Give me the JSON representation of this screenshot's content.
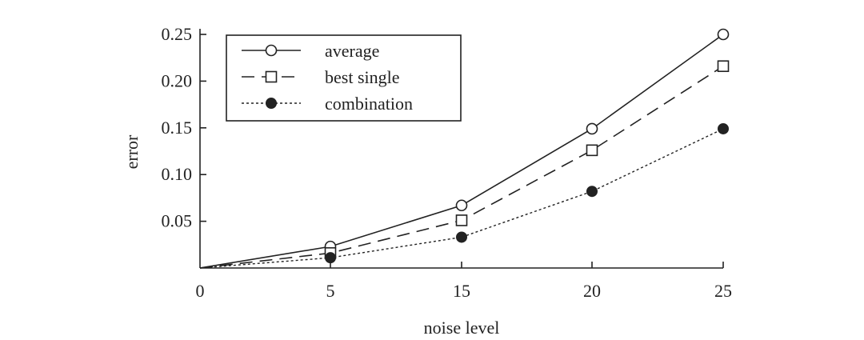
{
  "chart_data": {
    "type": "line",
    "x": [
      0,
      5,
      15,
      20,
      25
    ],
    "x_tick_labels": [
      "0",
      "5",
      "15",
      "20",
      "25"
    ],
    "y_ticks": [
      0.05,
      0.1,
      0.15,
      0.2,
      0.25
    ],
    "y_tick_labels": [
      "0.05",
      "0.10",
      "0.15",
      "0.20",
      "0.25"
    ],
    "xlabel": "noise level",
    "ylabel": "error",
    "ylim": [
      0,
      0.25
    ],
    "x_scale": "categorical-positions",
    "grid": false,
    "legend_position": "top-left",
    "series": [
      {
        "name": "average",
        "values": [
          0,
          0.023,
          0.067,
          0.149,
          0.25
        ],
        "line": "solid",
        "marker": "open-circle"
      },
      {
        "name": "best single",
        "values": [
          0,
          0.016,
          0.051,
          0.126,
          0.216
        ],
        "line": "dashed",
        "marker": "open-square"
      },
      {
        "name": "combination",
        "values": [
          0,
          0.011,
          0.033,
          0.082,
          0.149
        ],
        "line": "dotted",
        "marker": "filled-circle"
      }
    ]
  }
}
